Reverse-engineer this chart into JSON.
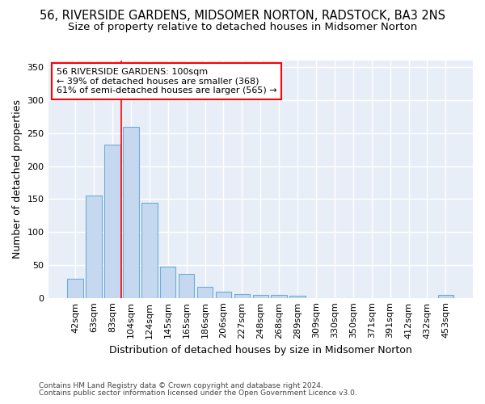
{
  "title": "56, RIVERSIDE GARDENS, MIDSOMER NORTON, RADSTOCK, BA3 2NS",
  "subtitle": "Size of property relative to detached houses in Midsomer Norton",
  "xlabel": "Distribution of detached houses by size in Midsomer Norton",
  "ylabel": "Number of detached properties",
  "footer_line1": "Contains HM Land Registry data © Crown copyright and database right 2024.",
  "footer_line2": "Contains public sector information licensed under the Open Government Licence v3.0.",
  "annotation_line1": "56 RIVERSIDE GARDENS: 100sqm",
  "annotation_line2": "← 39% of detached houses are smaller (368)",
  "annotation_line3": "61% of semi-detached houses are larger (565) →",
  "bar_values": [
    29,
    155,
    232,
    259,
    144,
    48,
    36,
    17,
    10,
    6,
    4,
    4,
    3,
    0,
    0,
    0,
    0,
    0,
    0,
    0,
    4
  ],
  "bar_labels": [
    "42sqm",
    "63sqm",
    "83sqm",
    "104sqm",
    "124sqm",
    "145sqm",
    "165sqm",
    "186sqm",
    "206sqm",
    "227sqm",
    "248sqm",
    "268sqm",
    "289sqm",
    "309sqm",
    "330sqm",
    "350sqm",
    "371sqm",
    "391sqm",
    "412sqm",
    "432sqm",
    "453sqm"
  ],
  "bar_color": "#c5d8f0",
  "bar_edge_color": "#6baed6",
  "vline_color": "red",
  "vline_x": 2.5,
  "ylim": [
    0,
    360
  ],
  "yticks": [
    0,
    50,
    100,
    150,
    200,
    250,
    300,
    350
  ],
  "bg_color": "#e8eef8",
  "grid_color": "#ffffff",
  "title_fontsize": 10.5,
  "subtitle_fontsize": 9.5,
  "ylabel_fontsize": 9,
  "xlabel_fontsize": 9,
  "annotation_fontsize": 8,
  "tick_fontsize": 8,
  "footer_fontsize": 6.5
}
